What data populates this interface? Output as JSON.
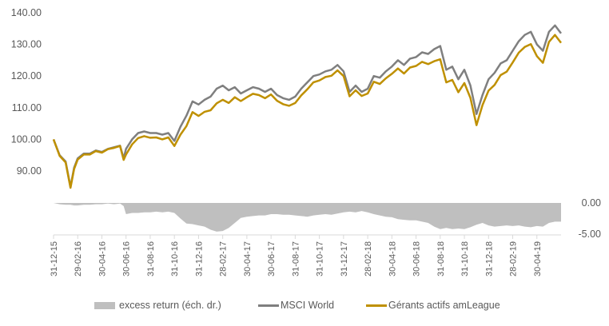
{
  "chart_data": {
    "type": "line",
    "title": "",
    "left_axis": {
      "ticks": [
        "140.00",
        "130.00",
        "120.00",
        "110.00",
        "100.00",
        "90.00"
      ],
      "tick_values": [
        140,
        130,
        120,
        110,
        100,
        90
      ],
      "range": [
        80,
        140
      ]
    },
    "right_axis": {
      "ticks": [
        "0.00",
        "-5.00"
      ],
      "tick_values": [
        0,
        -5
      ],
      "range": [
        -5,
        0
      ]
    },
    "x_unit": "months since 31-12-15",
    "x_range": [
      0,
      42
    ],
    "x_tick_labels": [
      "31-12-15",
      "29-02-16",
      "30-04-16",
      "30-06-16",
      "31-08-16",
      "31-10-16",
      "31-12-16",
      "28-02-17",
      "30-04-17",
      "30-06-17",
      "31-08-17",
      "31-10-17",
      "31-12-17",
      "28-02-18",
      "30-04-18",
      "30-06-18",
      "31-08-18",
      "31-10-18",
      "31-12-18",
      "28-02-19",
      "30-04-19"
    ],
    "x": [
      0,
      0.5,
      1,
      1.4,
      1.7,
      2,
      2.5,
      3,
      3.5,
      4,
      4.5,
      5,
      5.5,
      5.8,
      6,
      6.5,
      7,
      7.5,
      8,
      8.5,
      9,
      9.5,
      10,
      10.5,
      11,
      11.5,
      12,
      12.5,
      13,
      13.5,
      14,
      14.5,
      15,
      15.5,
      16,
      16.5,
      17,
      17.5,
      18,
      18.5,
      19,
      19.5,
      20,
      20.5,
      21,
      21.5,
      22,
      22.5,
      23,
      23.5,
      24,
      24.5,
      25,
      25.5,
      26,
      26.5,
      27,
      27.5,
      28,
      28.5,
      29,
      29.5,
      30,
      30.5,
      31,
      31.5,
      32,
      32.5,
      33,
      33.5,
      34,
      34.5,
      35,
      35.5,
      36,
      36.5,
      37,
      37.5,
      38,
      38.5,
      39,
      39.5,
      40,
      40.5,
      41,
      41.5,
      42
    ],
    "series": [
      {
        "name": "excess return (éch. dr.)",
        "type": "area",
        "axis": "right",
        "color": "#bfbfbf",
        "values": [
          0,
          -0.2,
          -0.3,
          -0.3,
          -0.4,
          -0.4,
          -0.3,
          -0.3,
          -0.2,
          -0.2,
          -0.1,
          -0.2,
          -0.1,
          -0.5,
          -1.8,
          -1.6,
          -1.6,
          -1.5,
          -1.5,
          -1.4,
          -1.5,
          -1.4,
          -1.6,
          -2.5,
          -3.3,
          -3.4,
          -3.6,
          -3.8,
          -4.3,
          -4.6,
          -4.5,
          -4.0,
          -3.2,
          -2.4,
          -2.2,
          -2.1,
          -2.0,
          -2.0,
          -1.8,
          -1.8,
          -1.9,
          -1.9,
          -2.0,
          -2.1,
          -2.2,
          -2.0,
          -1.9,
          -1.8,
          -1.9,
          -1.7,
          -1.5,
          -1.4,
          -1.5,
          -1.3,
          -1.5,
          -1.8,
          -2.0,
          -2.2,
          -2.3,
          -2.6,
          -2.7,
          -2.8,
          -2.8,
          -3.0,
          -3.2,
          -3.8,
          -4.2,
          -4.0,
          -4.2,
          -4.1,
          -4.2,
          -3.9,
          -3.5,
          -3.2,
          -3.6,
          -3.8,
          -3.7,
          -3.6,
          -3.7,
          -3.6,
          -3.8,
          -3.9,
          -3.7,
          -3.8,
          -3.2,
          -3.0,
          -3.0
        ]
      },
      {
        "name": "MSCI World",
        "type": "line",
        "axis": "left",
        "color": "#7f7f7f",
        "values": [
          100,
          95,
          93,
          85,
          91,
          94,
          95.5,
          95.5,
          96.5,
          96,
          97,
          97.5,
          98,
          94,
          97,
          100,
          102,
          102.5,
          102,
          102,
          101.5,
          102,
          99.5,
          104,
          107.5,
          112,
          111,
          112.5,
          113.5,
          116,
          117,
          115.5,
          116.5,
          114.5,
          115.5,
          116.5,
          116,
          115,
          116,
          114,
          113,
          112.5,
          113.5,
          116,
          118,
          120,
          120.5,
          121.5,
          122,
          123.5,
          121.5,
          115,
          117,
          115,
          116,
          120,
          119.5,
          121.5,
          123,
          125,
          123.5,
          125.5,
          126,
          127.5,
          127,
          128.5,
          129.5,
          122,
          123,
          119,
          122,
          117,
          108,
          114,
          119,
          121,
          124,
          125,
          128,
          131,
          133,
          134,
          130,
          128,
          134,
          136,
          133.5
        ]
      },
      {
        "name": "Gérants actifs amLeague",
        "type": "line",
        "axis": "left",
        "color": "#bf9000",
        "values": [
          100,
          94.8,
          92.7,
          84.7,
          90.6,
          93.6,
          95.2,
          95.2,
          96.3,
          95.8,
          96.9,
          97.3,
          97.9,
          93.5,
          95.2,
          98.4,
          100.4,
          101,
          100.5,
          100.6,
          100,
          100.6,
          97.9,
          101.5,
          104.2,
          108.6,
          107.4,
          108.7,
          109.2,
          111.4,
          112.5,
          111.5,
          113.3,
          112.1,
          113.3,
          114.4,
          114,
          113,
          114.2,
          112.2,
          111.1,
          110.6,
          111.5,
          113.9,
          115.8,
          118,
          118.6,
          119.7,
          120.1,
          121.8,
          120,
          113.6,
          115.5,
          113.7,
          114.5,
          118.2,
          117.5,
          119.3,
          120.7,
          122.4,
          120.8,
          122.7,
          123.2,
          124.5,
          123.8,
          124.7,
          125.3,
          118,
          118.8,
          114.9,
          117.8,
          113.1,
          104.5,
          110.8,
          115.4,
          117.2,
          120.3,
          121.4,
          124.3,
          127.4,
          129.2,
          130.1,
          126.3,
          124.2,
          130.8,
          133,
          130.5
        ]
      }
    ],
    "legend": {
      "position": "bottom",
      "items": [
        "excess return (éch. dr.)",
        "MSCI World",
        "Gérants actifs amLeague"
      ]
    },
    "grid": false
  }
}
